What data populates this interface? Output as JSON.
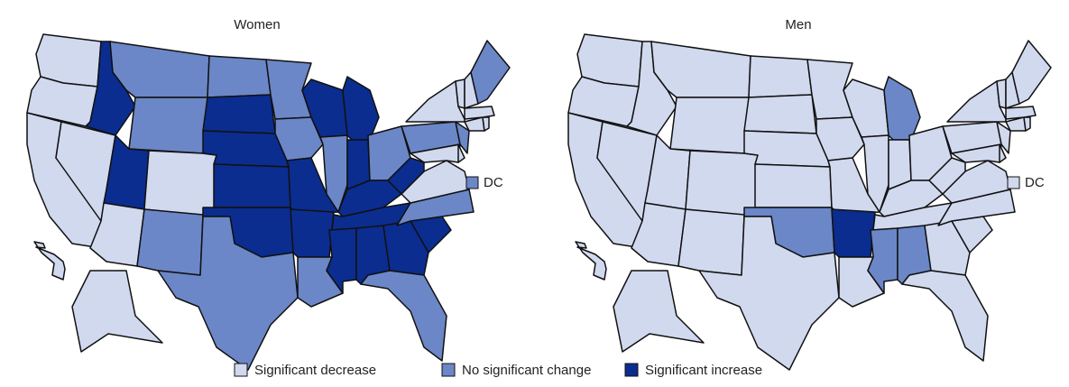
{
  "panels": [
    {
      "title": "Women",
      "dc_label": "DC",
      "dc_class": 1,
      "states": [
        0,
        0,
        0,
        0,
        2,
        1,
        1,
        2,
        0,
        0,
        1,
        1,
        2,
        2,
        2,
        2,
        1,
        1,
        1,
        2,
        2,
        1,
        2,
        1,
        2,
        2,
        1,
        2,
        2,
        2,
        2,
        2,
        1,
        2,
        1,
        0,
        2,
        1,
        0,
        0,
        1,
        0,
        0,
        0,
        0,
        0,
        0,
        1,
        0,
        0
      ]
    },
    {
      "title": "Men",
      "dc_label": "DC",
      "dc_class": 0,
      "states": [
        0,
        0,
        0,
        0,
        0,
        0,
        0,
        0,
        0,
        0,
        0,
        0,
        0,
        0,
        0,
        1,
        0,
        0,
        0,
        0,
        2,
        0,
        0,
        0,
        1,
        0,
        0,
        0,
        0,
        1,
        1,
        0,
        0,
        0,
        0,
        0,
        0,
        0,
        0,
        0,
        0,
        0,
        0,
        0,
        0,
        0,
        0,
        0,
        0,
        0
      ]
    }
  ],
  "legend": [
    {
      "label": "Significant decrease",
      "color": "#d1d9ef"
    },
    {
      "label": "No significant change",
      "color": "#6b87c8"
    },
    {
      "label": "Significant increase",
      "color": "#0b2d8f"
    }
  ]
}
